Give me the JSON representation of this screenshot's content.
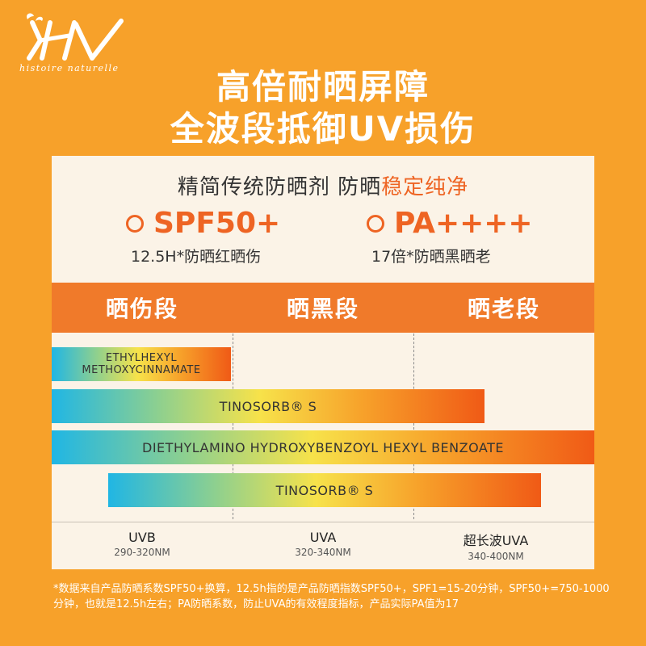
{
  "brand": {
    "mark": "HN",
    "tagline": "histoire naturelle"
  },
  "headline": {
    "line1": "高倍耐晒屏障",
    "line2": "全波段抵御UV损伤"
  },
  "subtitle": {
    "prefix": "精简传统防晒剂 防晒",
    "highlight": "稳定纯净"
  },
  "specs": [
    {
      "value": "SPF50+",
      "desc": "12.5H*防晒红晒伤"
    },
    {
      "value": "PA++++",
      "desc": "17倍*防晒黑晒老"
    }
  ],
  "bands": [
    "晒伤段",
    "晒黑段",
    "晒老段"
  ],
  "ingredients": [
    {
      "line1": "ETHYLHEXYL",
      "line2": "METHOXYCINNAMATE"
    },
    {
      "label": "TINOSORB® S"
    },
    {
      "label": "DIETHYLAMINO HYDROXYBENZOYL HEXYL BENZOATE"
    },
    {
      "label": "TINOSORB® S"
    }
  ],
  "axis": [
    {
      "name": "UVB",
      "range": "290-320NM"
    },
    {
      "name": "UVA",
      "range": "320-340NM"
    },
    {
      "name": "超长波UVA",
      "range": "340-400NM"
    }
  ],
  "footnote": "*数据来自产品防晒系数SPF50+换算，12.5h指的是产品防晒指数SPF50+，SPF1=15-20分钟，SPF50+=750-1000分钟，也就是12.5h左右；PA防晒系数，防止UVA的有效程度指标，产品实际PA值为17",
  "colors": {
    "background": "#f7a12a",
    "panel": "#fbf3e7",
    "accent": "#ee6423",
    "band_bar": "#f07a2a"
  },
  "icons": [
    "leaf-icon",
    "circle-icon"
  ]
}
